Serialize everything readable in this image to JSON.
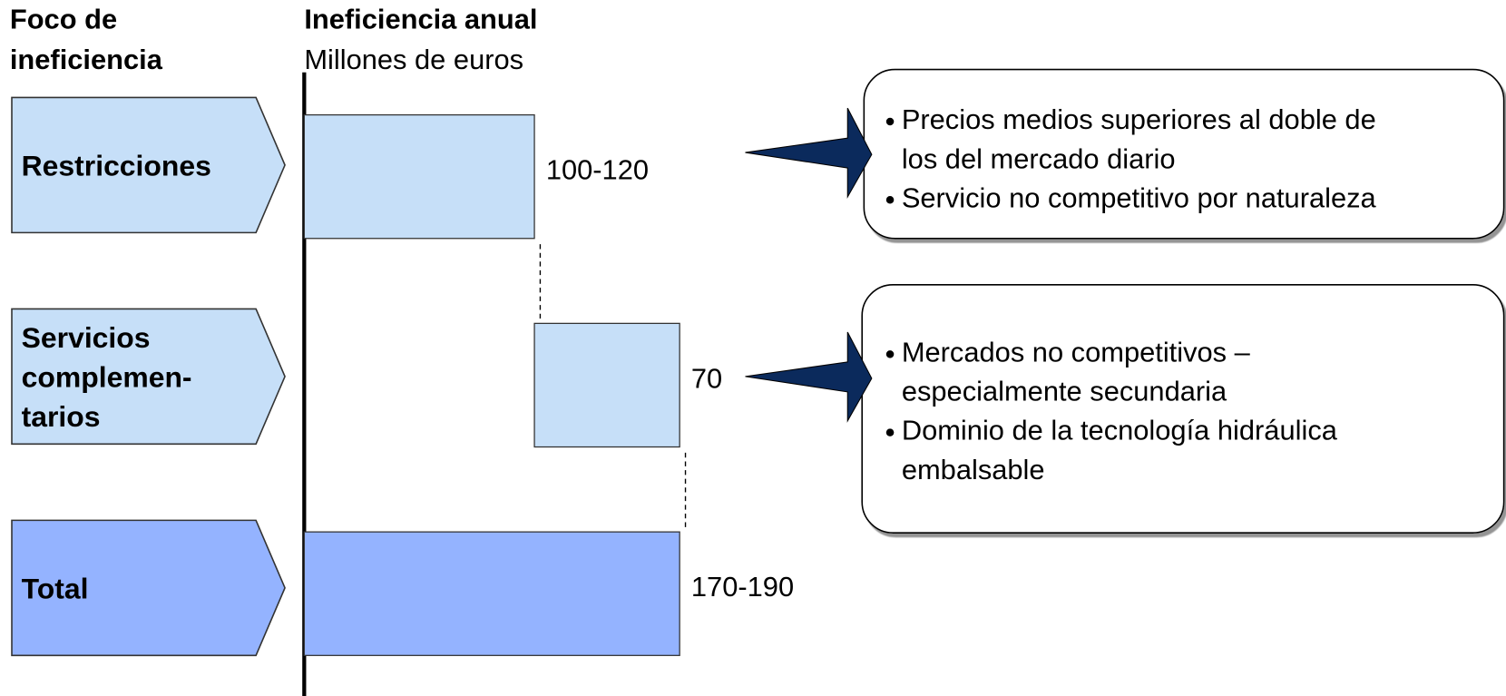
{
  "chart_data": {
    "type": "waterfall",
    "category_header": [
      "Foco de",
      "ineficiencia"
    ],
    "title": "Ineficiencia anual",
    "subtitle": "Millones de euros",
    "categories": [
      [
        "Restricciones"
      ],
      [
        "Servicios",
        "complemen-",
        "tarios"
      ],
      [
        "Total"
      ]
    ],
    "measure": [
      "relative",
      "relative",
      "total"
    ],
    "values": [
      110,
      70,
      180
    ],
    "value_labels": [
      "100-120",
      "70",
      "170-190"
    ],
    "colors": [
      "#c6dff8",
      "#c6dff8",
      "#94b3ff"
    ],
    "annotations": [
      {
        "category": 0,
        "bullets": [
          [
            "Precios medios superiores al doble de",
            "los del mercado diario"
          ],
          [
            "Servicio no competitivo por naturaleza"
          ]
        ]
      },
      {
        "category": 1,
        "bullets": [
          [
            "Mercados no competitivos –",
            "especialmente secundaria"
          ],
          [
            "Dominio de la tecnología hidráulica",
            "embalsable"
          ]
        ]
      }
    ]
  }
}
